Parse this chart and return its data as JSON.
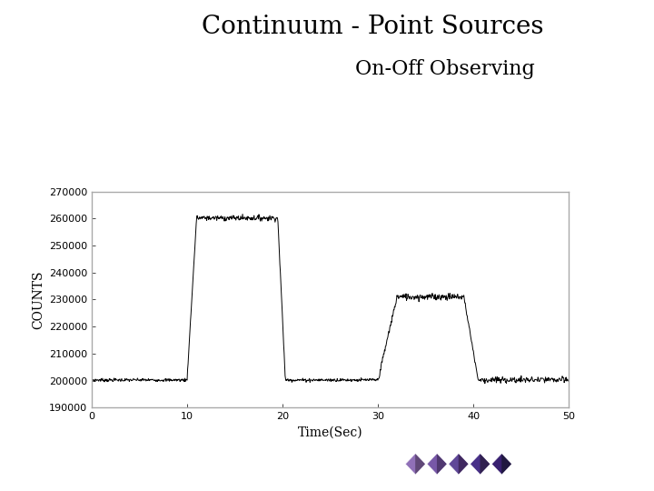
{
  "title": "Continuum - Point Sources",
  "subtitle": "On-Off Observing",
  "xlabel": "Time(Sec)",
  "ylabel": "COUNTS",
  "xlim": [
    0,
    50
  ],
  "ylim": [
    190000,
    270000
  ],
  "yticks": [
    190000,
    200000,
    210000,
    220000,
    230000,
    240000,
    250000,
    260000,
    270000
  ],
  "xticks": [
    0,
    10,
    20,
    30,
    40,
    50
  ],
  "line_color": "#000000",
  "bg_color": "#ffffff",
  "title_fontsize": 20,
  "subtitle_fontsize": 16,
  "axis_label_fontsize": 10,
  "tick_fontsize": 8,
  "spine_color": "#aaaaaa",
  "diamond_colors_grad": [
    [
      "#c0b0d0",
      "#7050a0"
    ],
    [
      "#a090c0",
      "#6040a0"
    ],
    [
      "#9080b8",
      "#503090"
    ],
    [
      "#7060a8",
      "#402080"
    ],
    [
      "#5040a0",
      "#301878"
    ]
  ]
}
